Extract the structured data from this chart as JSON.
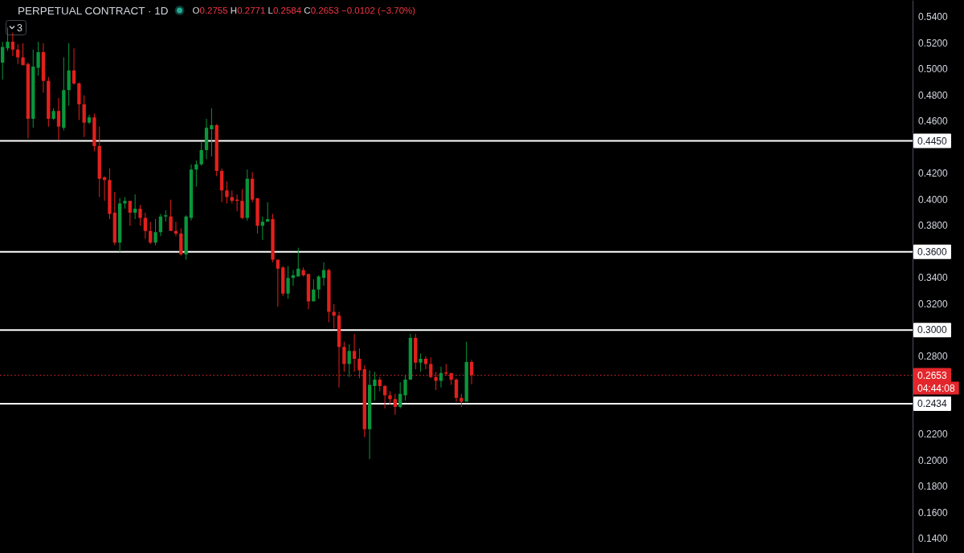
{
  "chart_data": {
    "type": "candlestick",
    "title": "PERPETUAL CONTRACT · 1D",
    "categories": [
      null,
      null,
      null,
      null,
      null,
      null,
      null,
      null,
      null,
      null,
      null,
      null,
      null,
      null,
      null,
      null,
      null,
      null,
      null,
      null,
      null,
      null,
      null,
      null,
      null,
      null,
      null,
      null,
      null,
      null,
      null,
      null,
      null,
      null,
      null,
      null,
      null,
      null,
      null,
      null,
      null,
      null,
      null,
      null,
      null,
      null,
      null,
      null,
      null,
      null,
      null,
      null,
      null,
      null,
      null,
      null,
      null,
      null,
      null,
      null,
      null,
      null,
      null,
      null,
      null,
      null,
      null,
      null,
      null,
      null,
      null,
      null,
      null,
      null,
      null,
      null,
      null,
      null,
      null,
      null,
      null,
      null,
      null,
      null,
      null,
      null,
      null,
      null,
      null,
      null,
      null,
      null,
      null,
      null,
      null,
      null,
      null,
      null,
      null,
      null,
      null,
      null,
      null,
      null,
      null,
      null,
      null,
      null,
      null,
      null,
      null,
      null,
      null,
      null,
      null,
      null,
      null,
      null,
      null,
      null,
      null,
      null,
      null,
      null,
      null,
      null,
      null,
      null,
      null,
      null,
      null,
      null,
      null,
      null,
      null,
      null,
      null,
      null,
      null,
      null,
      null,
      null,
      null,
      null,
      null,
      null,
      null,
      null,
      null,
      null,
      null,
      null,
      null,
      null,
      null,
      null,
      null,
      null,
      null,
      null,
      null,
      null,
      null,
      null,
      null,
      null,
      null,
      null,
      null,
      null,
      null,
      null,
      null,
      null,
      null,
      null,
      null,
      null,
      null
    ],
    "ohlc": [
      [
        0.505,
        0.521,
        0.492,
        0.517
      ],
      [
        0.516,
        0.532,
        0.514,
        0.521
      ],
      [
        0.521,
        0.528,
        0.51,
        0.515
      ],
      [
        0.515,
        0.519,
        0.504,
        0.509
      ],
      [
        0.509,
        0.52,
        0.503,
        0.503
      ],
      [
        0.504,
        0.505,
        0.447,
        0.462
      ],
      [
        0.462,
        0.515,
        0.455,
        0.502
      ],
      [
        0.501,
        0.521,
        0.495,
        0.513
      ],
      [
        0.513,
        0.52,
        0.482,
        0.491
      ],
      [
        0.491,
        0.494,
        0.456,
        0.462
      ],
      [
        0.462,
        0.47,
        0.461,
        0.468
      ],
      [
        0.468,
        0.478,
        0.446,
        0.456
      ],
      [
        0.455,
        0.509,
        0.453,
        0.484
      ],
      [
        0.484,
        0.52,
        0.472,
        0.499
      ],
      [
        0.499,
        0.516,
        0.488,
        0.489
      ],
      [
        0.489,
        0.49,
        0.461,
        0.473
      ],
      [
        0.473,
        0.48,
        0.448,
        0.459
      ],
      [
        0.459,
        0.465,
        0.458,
        0.463
      ],
      [
        0.463,
        0.466,
        0.437,
        0.441
      ],
      [
        0.441,
        0.456,
        0.402,
        0.416
      ],
      [
        0.417,
        0.418,
        0.399,
        0.415
      ],
      [
        0.415,
        0.424,
        0.385,
        0.389
      ],
      [
        0.39,
        0.406,
        0.365,
        0.367
      ],
      [
        0.367,
        0.401,
        0.36,
        0.397
      ],
      [
        0.397,
        0.402,
        0.393,
        0.399
      ],
      [
        0.399,
        0.399,
        0.38,
        0.39
      ],
      [
        0.39,
        0.404,
        0.385,
        0.393
      ],
      [
        0.393,
        0.396,
        0.38,
        0.386
      ],
      [
        0.386,
        0.39,
        0.37,
        0.376
      ],
      [
        0.376,
        0.383,
        0.366,
        0.367
      ],
      [
        0.367,
        0.385,
        0.365,
        0.375
      ],
      [
        0.375,
        0.389,
        0.372,
        0.387
      ],
      [
        0.387,
        0.392,
        0.383,
        0.388
      ],
      [
        0.387,
        0.4,
        0.376,
        0.376
      ],
      [
        0.376,
        0.383,
        0.372,
        0.374
      ],
      [
        0.374,
        0.378,
        0.357,
        0.358
      ],
      [
        0.358,
        0.388,
        0.354,
        0.387
      ],
      [
        0.386,
        0.427,
        0.384,
        0.423
      ],
      [
        0.423,
        0.43,
        0.41,
        0.427
      ],
      [
        0.427,
        0.444,
        0.426,
        0.438
      ],
      [
        0.438,
        0.462,
        0.431,
        0.455
      ],
      [
        0.454,
        0.47,
        0.433,
        0.457
      ],
      [
        0.457,
        0.458,
        0.418,
        0.422
      ],
      [
        0.422,
        0.424,
        0.398,
        0.407
      ],
      [
        0.407,
        0.414,
        0.397,
        0.402
      ],
      [
        0.402,
        0.407,
        0.397,
        0.399
      ],
      [
        0.4,
        0.404,
        0.391,
        0.399
      ],
      [
        0.399,
        0.408,
        0.385,
        0.386
      ],
      [
        0.386,
        0.423,
        0.384,
        0.416
      ],
      [
        0.416,
        0.421,
        0.398,
        0.4
      ],
      [
        0.401,
        0.401,
        0.374,
        0.38
      ],
      [
        0.38,
        0.387,
        0.369,
        0.383
      ],
      [
        0.383,
        0.398,
        0.383,
        0.385
      ],
      [
        0.385,
        0.389,
        0.352,
        0.354
      ],
      [
        0.354,
        0.354,
        0.318,
        0.347
      ],
      [
        0.348,
        0.349,
        0.326,
        0.328
      ],
      [
        0.328,
        0.349,
        0.324,
        0.34
      ],
      [
        0.34,
        0.346,
        0.334,
        0.342
      ],
      [
        0.341,
        0.363,
        0.341,
        0.347
      ],
      [
        0.346,
        0.348,
        0.341,
        0.342
      ],
      [
        0.343,
        0.343,
        0.316,
        0.322
      ],
      [
        0.322,
        0.339,
        0.322,
        0.331
      ],
      [
        0.331,
        0.342,
        0.324,
        0.341
      ],
      [
        0.34,
        0.352,
        0.334,
        0.346
      ],
      [
        0.346,
        0.347,
        0.306,
        0.314
      ],
      [
        0.314,
        0.32,
        0.301,
        0.311
      ],
      [
        0.311,
        0.314,
        0.256,
        0.287
      ],
      [
        0.287,
        0.291,
        0.268,
        0.274
      ],
      [
        0.274,
        0.289,
        0.264,
        0.284
      ],
      [
        0.284,
        0.297,
        0.268,
        0.278
      ],
      [
        0.278,
        0.286,
        0.263,
        0.269
      ],
      [
        0.27,
        0.273,
        0.218,
        0.224
      ],
      [
        0.224,
        0.269,
        0.201,
        0.258
      ],
      [
        0.257,
        0.268,
        0.246,
        0.262
      ],
      [
        0.262,
        0.264,
        0.253,
        0.257
      ],
      [
        0.257,
        0.258,
        0.24,
        0.25
      ],
      [
        0.25,
        0.253,
        0.243,
        0.247
      ],
      [
        0.247,
        0.251,
        0.235,
        0.241
      ],
      [
        0.241,
        0.26,
        0.24,
        0.251
      ],
      [
        0.25,
        0.265,
        0.246,
        0.262
      ],
      [
        0.262,
        0.297,
        0.262,
        0.294
      ],
      [
        0.294,
        0.297,
        0.27,
        0.275
      ],
      [
        0.275,
        0.282,
        0.268,
        0.278
      ],
      [
        0.278,
        0.28,
        0.27,
        0.274
      ],
      [
        0.274,
        0.279,
        0.263,
        0.264
      ],
      [
        0.264,
        0.268,
        0.254,
        0.261
      ],
      [
        0.261,
        0.272,
        0.256,
        0.267
      ],
      [
        0.2675,
        0.274,
        0.265,
        0.2665
      ],
      [
        0.267,
        0.267,
        0.258,
        0.262
      ],
      [
        0.262,
        0.263,
        0.245,
        0.248
      ],
      [
        0.248,
        0.251,
        0.241,
        0.245
      ],
      [
        0.245,
        0.291,
        0.245,
        0.2755
      ],
      [
        0.2755,
        0.2771,
        0.2584,
        0.2653
      ],
      null,
      null,
      null,
      null,
      null,
      null,
      null,
      null,
      null,
      null,
      null,
      null,
      null,
      null,
      null,
      null,
      null,
      null,
      null,
      null,
      null,
      null,
      null,
      null,
      null,
      null,
      null,
      null,
      null,
      null,
      null,
      null,
      null,
      null,
      null,
      null,
      null,
      null,
      null,
      null,
      null,
      null,
      null,
      null,
      null,
      null,
      null,
      null,
      null,
      null,
      null,
      null,
      null,
      null,
      null,
      null,
      null,
      null,
      null,
      null,
      null,
      null,
      null,
      null,
      null,
      null,
      null,
      null,
      null,
      null,
      null,
      null,
      null,
      null,
      null,
      null,
      null,
      null,
      null,
      null,
      null,
      null,
      null,
      null,
      null,
      null
    ],
    "colors": [
      "#0a963c",
      "#0a963c",
      "#e2201c",
      "#e2201c",
      "#e2201c",
      "#e2201c",
      "#0a963c",
      "#0a963c",
      "#e2201c",
      "#e2201c",
      "#0a963c",
      "#e2201c",
      "#0a963c",
      "#0a963c",
      "#e2201c",
      "#e2201c",
      "#e2201c",
      "#0a963c",
      "#e2201c",
      "#e2201c",
      "#e2201c",
      "#e2201c",
      "#e2201c",
      "#0a963c",
      "#0a963c",
      "#e2201c",
      "#0a963c",
      "#e2201c",
      "#e2201c",
      "#e2201c",
      "#0a963c",
      "#0a963c",
      "#0a963c",
      "#e2201c",
      "#e2201c",
      "#e2201c",
      "#0a963c",
      "#0a963c",
      "#0a963c",
      "#0a963c",
      "#0a963c",
      "#0a963c",
      "#e2201c",
      "#e2201c",
      "#e2201c",
      "#e2201c",
      "#e2201c",
      "#e2201c",
      "#0a963c",
      "#e2201c",
      "#e2201c",
      "#0a963c",
      "#0a963c",
      "#e2201c",
      "#e2201c",
      "#e2201c",
      "#0a963c",
      "#0a963c",
      "#0a963c",
      "#e2201c",
      "#e2201c",
      "#0a963c",
      "#0a963c",
      "#0a963c",
      "#e2201c",
      "#e2201c",
      "#e2201c",
      "#e2201c",
      "#0a963c",
      "#e2201c",
      "#e2201c",
      "#e2201c",
      "#0a963c",
      "#0a963c",
      "#e2201c",
      "#e2201c",
      "#e2201c",
      "#e2201c",
      "#0a963c",
      "#0a963c",
      "#0a963c",
      "#e2201c",
      "#0a963c",
      "#e2201c",
      "#e2201c",
      "#e2201c",
      "#0a963c",
      "#e2201c",
      "#e2201c",
      "#e2201c",
      "#e2201c",
      "#0a963c",
      "#e2201c",
      null,
      null,
      null,
      null,
      null,
      null,
      null,
      null,
      null,
      null,
      null,
      null,
      null,
      null,
      null,
      null,
      null,
      null,
      null,
      null,
      null,
      null,
      null,
      null,
      null,
      null,
      null,
      null,
      null,
      null,
      null,
      null,
      null,
      null,
      null,
      null,
      null,
      null,
      null,
      null,
      null,
      null,
      null,
      null,
      null,
      null,
      null,
      null,
      null,
      null,
      null,
      null,
      null,
      null,
      null,
      null,
      null,
      null,
      null,
      null,
      null,
      null,
      null,
      null,
      null,
      null,
      null,
      null,
      null,
      null,
      null,
      null,
      null,
      null,
      null,
      null,
      null,
      null,
      null,
      null,
      null,
      null,
      null,
      null,
      null,
      null
    ],
    "ylim": [
      0.129,
      0.553
    ],
    "yticks": [
      {
        "value": 0.54,
        "label": "0.5400"
      },
      {
        "value": 0.52,
        "label": "0.5200"
      },
      {
        "value": 0.5,
        "label": "0.5000"
      },
      {
        "value": 0.48,
        "label": "0.4800"
      },
      {
        "value": 0.46,
        "label": "0.4600"
      },
      {
        "value": 0.42,
        "label": "0.4200"
      },
      {
        "value": 0.4,
        "label": "0.4000"
      },
      {
        "value": 0.38,
        "label": "0.3800"
      },
      {
        "value": 0.34,
        "label": "0.3400"
      },
      {
        "value": 0.32,
        "label": "0.3200"
      },
      {
        "value": 0.28,
        "label": "0.2800"
      },
      {
        "value": 0.22,
        "label": "0.2200"
      },
      {
        "value": 0.2,
        "label": "0.2000"
      },
      {
        "value": 0.18,
        "label": "0.1800"
      },
      {
        "value": 0.16,
        "label": "0.1600"
      },
      {
        "value": 0.14,
        "label": "0.1400"
      }
    ],
    "tick_labels": "y",
    "ref_lines": [
      {
        "axis": "y",
        "value": 0.445,
        "label": "0.4450",
        "color": "#ffffff"
      },
      {
        "axis": "y",
        "value": 0.36,
        "label": "0.3600",
        "color": "#ffffff"
      },
      {
        "axis": "y",
        "value": 0.3,
        "label": "0.3000",
        "color": "#ffffff"
      },
      {
        "axis": "y",
        "value": 0.2434,
        "label": "0.2434",
        "color": "#ffffff"
      },
      {
        "axis": "y",
        "value": 0.2653,
        "label": "0.2653",
        "color": "#e3262b",
        "line_style": "dotted"
      }
    ],
    "annotations": [
      "O0.2755 H0.2771 L0.2584 C0.2653 −0.0102 (−3.70%)",
      "3",
      "04:44:08"
    ]
  }
}
